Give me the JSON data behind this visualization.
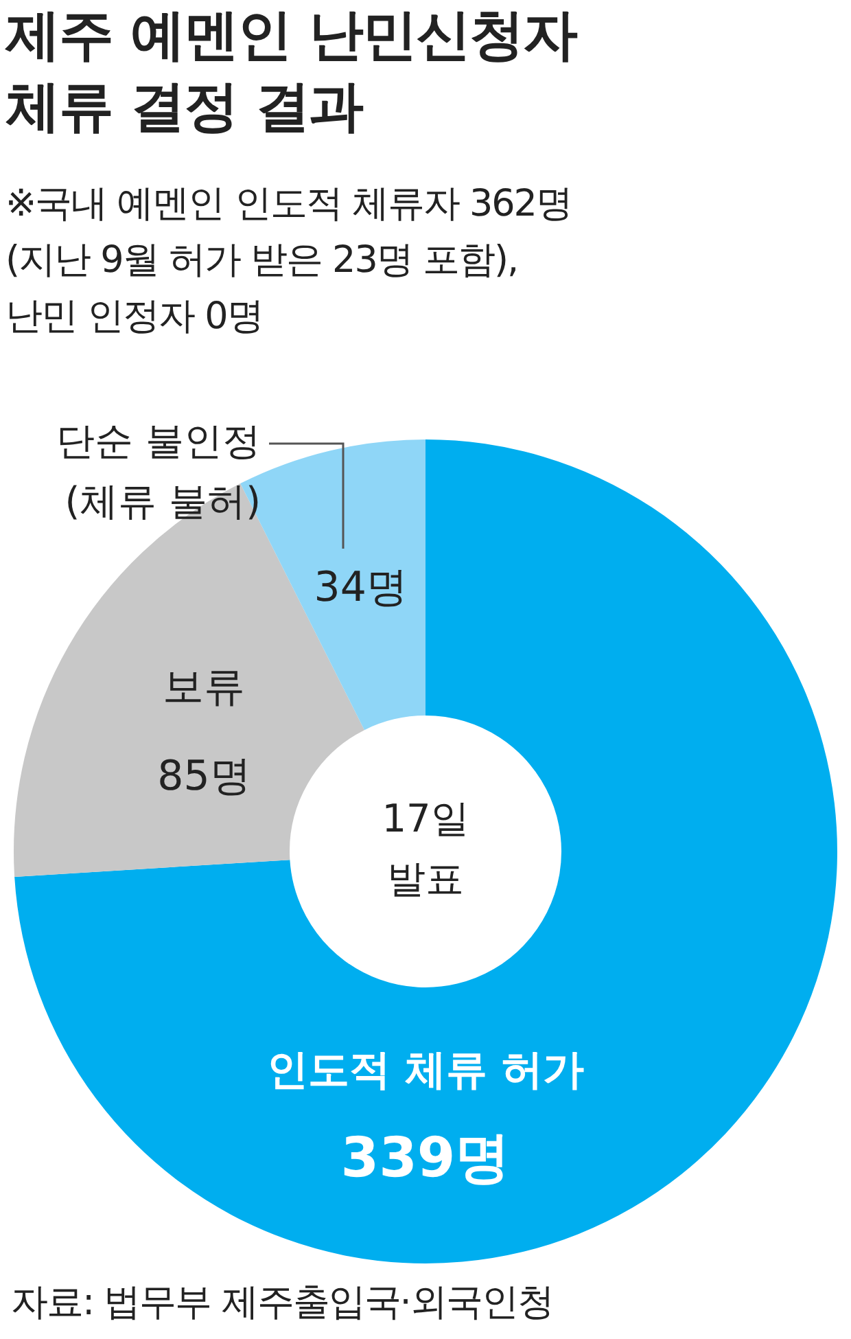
{
  "chart_data": {
    "type": "donut",
    "title": "제주 예멘인 난민신청자\n체류 결정 결과",
    "subtitle": "※국내 예멘인 인도적 체류자 362명\n(지난 9월 허가 받은 23명 포함),\n난민 인정자 0명",
    "categories": [
      "인도적 체류 허가",
      "보류",
      "단순 불인정\n(체류 불허)"
    ],
    "values": [
      339,
      85,
      34
    ],
    "colors": [
      "#00aeef",
      "#c8c8c8",
      "#8fd6f7"
    ],
    "value_labels": [
      "339명",
      "85명",
      "34명"
    ],
    "annotations": [
      "17일\n발표",
      "자료: 법무부 제주출입국·외국인청"
    ],
    "legend": false
  }
}
